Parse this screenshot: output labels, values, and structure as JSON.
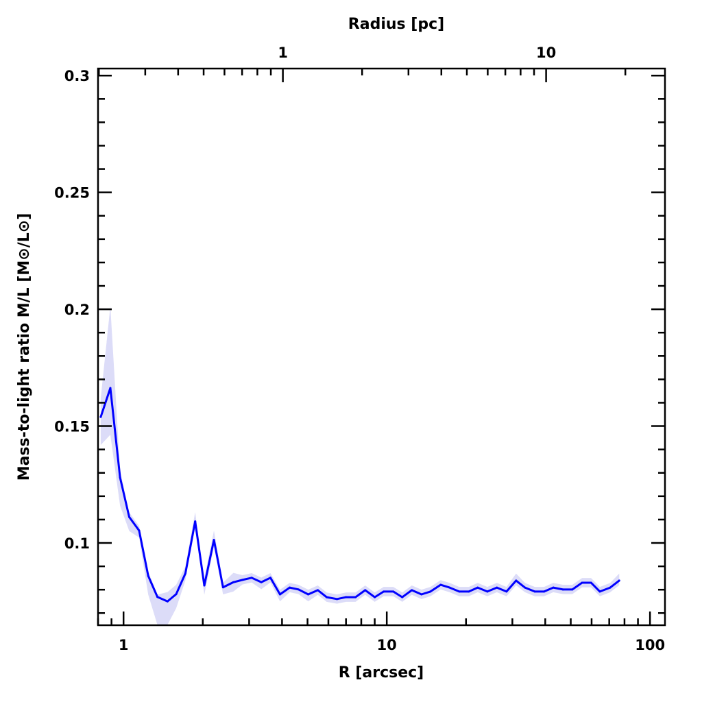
{
  "chart_data": {
    "type": "line",
    "title": "",
    "xlabel": "R [arcsec]",
    "ylabel": "Mass-to-light ratio M/L [M⊙/L⊙]",
    "top_xlabel": "Radius [pc]",
    "xscale": "log",
    "xlim": [
      0.8,
      114
    ],
    "ylim": [
      0.0648,
      0.303
    ],
    "arcsec_per_pc": 4.03,
    "x_ticks": [
      {
        "value": 1,
        "label": "1"
      },
      {
        "value": 10,
        "label": "10"
      },
      {
        "value": 100,
        "label": "100"
      }
    ],
    "top_ticks_pc": [
      {
        "value": 1,
        "label": "1"
      },
      {
        "value": 10,
        "label": "10"
      }
    ],
    "y_ticks": [
      {
        "value": 0.1,
        "label": "0.1"
      },
      {
        "value": 0.15,
        "label": "0.15"
      },
      {
        "value": 0.2,
        "label": "0.2"
      },
      {
        "value": 0.25,
        "label": "0.25"
      },
      {
        "value": 0.3,
        "label": "0.3"
      }
    ],
    "grid": false,
    "series": [
      {
        "name": "M/L",
        "color": "#0000ff",
        "band_color": "#dcdcf8",
        "x": [
          0.819,
          0.891,
          0.97,
          1.051,
          1.146,
          1.241,
          1.345,
          1.469,
          1.585,
          1.717,
          1.871,
          2.027,
          2.205,
          2.388,
          2.614,
          2.83,
          3.068,
          3.337,
          3.614,
          3.93,
          4.276,
          4.62,
          5.03,
          5.47,
          5.91,
          6.47,
          7.0,
          7.61,
          8.28,
          9.0,
          9.73,
          10.59,
          11.45,
          12.45,
          13.55,
          14.65,
          16.03,
          17.33,
          18.85,
          20.5,
          22.15,
          24.1,
          26.2,
          28.5,
          31.0,
          33.5,
          36.5,
          39.6,
          42.9,
          46.7,
          50.7,
          55.2,
          59.7,
          64.5,
          70.6,
          76.4
        ],
        "y": [
          0.1539,
          0.1663,
          0.128,
          0.1111,
          0.1053,
          0.0859,
          0.0769,
          0.075,
          0.0781,
          0.0869,
          0.1092,
          0.0818,
          0.1013,
          0.081,
          0.0832,
          0.0842,
          0.0851,
          0.0832,
          0.0851,
          0.078,
          0.0809,
          0.0801,
          0.078,
          0.0798,
          0.0768,
          0.076,
          0.0768,
          0.0768,
          0.0798,
          0.0768,
          0.0792,
          0.0792,
          0.0768,
          0.0798,
          0.078,
          0.0792,
          0.0821,
          0.0809,
          0.0792,
          0.0792,
          0.0809,
          0.0792,
          0.0809,
          0.0792,
          0.0839,
          0.0809,
          0.0792,
          0.0792,
          0.0809,
          0.0801,
          0.0801,
          0.083,
          0.083,
          0.0792,
          0.0809,
          0.0839
        ],
        "err_low": [
          0.012,
          0.02,
          0.012,
          0.006,
          0.003,
          0.008,
          0.012,
          0.01,
          0.006,
          0.003,
          0.002,
          0.004,
          0.003,
          0.003,
          0.004,
          0.002,
          0.002,
          0.003,
          0.002,
          0.003,
          0.002,
          0.002,
          0.003,
          0.002,
          0.002,
          0.002,
          0.002,
          0.002,
          0.002,
          0.002,
          0.002,
          0.002,
          0.002,
          0.002,
          0.002,
          0.002,
          0.002,
          0.002,
          0.002,
          0.002,
          0.002,
          0.002,
          0.002,
          0.002,
          0.002,
          0.002,
          0.002,
          0.002,
          0.002,
          0.002,
          0.002,
          0.002,
          0.002,
          0.002,
          0.002,
          0.002
        ],
        "err_high": [
          0.008,
          0.035,
          0.003,
          0.002,
          0.002,
          0.002,
          0.001,
          0.004,
          0.004,
          0.003,
          0.004,
          0.003,
          0.004,
          0.002,
          0.004,
          0.002,
          0.002,
          0.002,
          0.002,
          0.002,
          0.002,
          0.002,
          0.002,
          0.002,
          0.002,
          0.002,
          0.002,
          0.002,
          0.002,
          0.002,
          0.002,
          0.002,
          0.002,
          0.002,
          0.002,
          0.002,
          0.002,
          0.002,
          0.002,
          0.002,
          0.002,
          0.002,
          0.002,
          0.002,
          0.003,
          0.002,
          0.002,
          0.002,
          0.002,
          0.002,
          0.002,
          0.002,
          0.002,
          0.002,
          0.002,
          0.003
        ]
      }
    ]
  }
}
